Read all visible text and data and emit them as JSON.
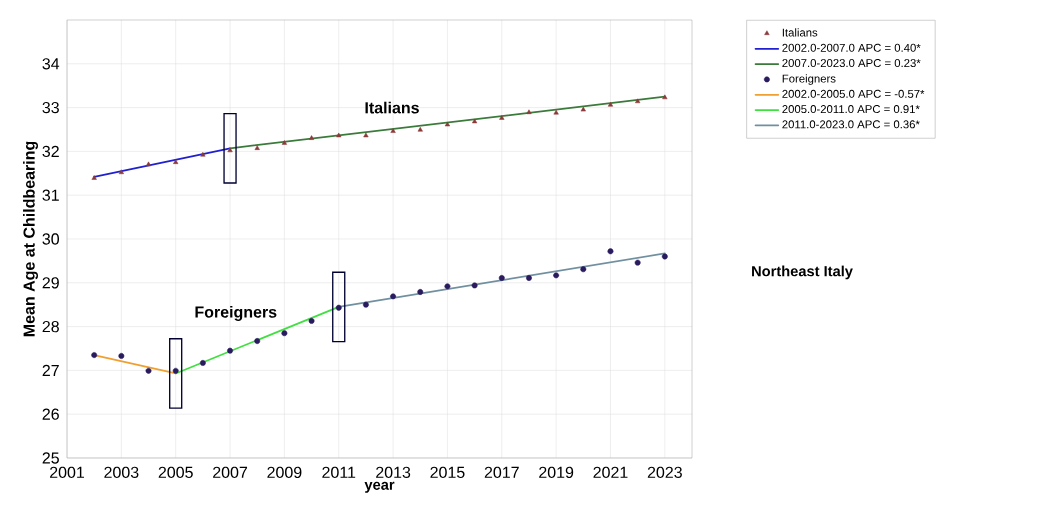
{
  "chart_data": {
    "type": "line",
    "xlabel": "year",
    "ylabel": "Mean Age at Childbearing",
    "xlim": [
      2001,
      2024
    ],
    "ylim": [
      25,
      35
    ],
    "xticks": [
      2001,
      2003,
      2005,
      2007,
      2009,
      2011,
      2013,
      2015,
      2017,
      2019,
      2021,
      2023
    ],
    "yticks": [
      25,
      26,
      27,
      28,
      29,
      30,
      31,
      32,
      33,
      34
    ],
    "grid": true,
    "legend": "top right",
    "x": [
      2002,
      2003,
      2004,
      2005,
      2006,
      2007,
      2008,
      2009,
      2010,
      2011,
      2012,
      2013,
      2014,
      2015,
      2016,
      2017,
      2018,
      2019,
      2020,
      2021,
      2022,
      2023
    ],
    "series": [
      {
        "name": "Italians",
        "type": "scatter",
        "marker": "triangle",
        "color": "#8b3a3a",
        "values": [
          31.39,
          31.52,
          31.7,
          31.75,
          31.92,
          32.02,
          32.07,
          32.19,
          32.3,
          32.36,
          32.36,
          32.46,
          32.49,
          32.61,
          32.68,
          32.76,
          32.89,
          32.88,
          32.95,
          33.06,
          33.14,
          33.23
        ]
      },
      {
        "name": "2002.0-2007.0 APC  = 0.40*",
        "marker": "none",
        "color": "#2020d0",
        "x": [
          2002,
          2007
        ],
        "values": [
          31.42,
          32.07
        ]
      },
      {
        "name": "2007.0-2023.0 APC  = 0.23*",
        "marker": "none",
        "color": "#3a7a3a",
        "x": [
          2007,
          2023
        ],
        "values": [
          32.07,
          33.25
        ]
      },
      {
        "name": "Foreigners",
        "type": "scatter",
        "marker": "circle",
        "color": "#2a1a5e",
        "values": [
          27.35,
          27.33,
          26.99,
          26.99,
          27.17,
          27.45,
          27.67,
          27.85,
          28.13,
          28.43,
          28.5,
          28.69,
          28.79,
          28.92,
          28.94,
          29.11,
          29.11,
          29.17,
          29.31,
          29.72,
          29.46,
          29.6
        ]
      },
      {
        "name": "2002.0-2005.0 APC  = -0.57*",
        "marker": "none",
        "color": "#f0a030",
        "x": [
          2002,
          2005
        ],
        "values": [
          27.35,
          26.93
        ]
      },
      {
        "name": "2005.0-2011.0 APC  =  0.91*",
        "marker": "none",
        "color": "#40e040",
        "x": [
          2005,
          2011
        ],
        "values": [
          26.93,
          28.45
        ]
      },
      {
        "name": "2011.0-2023.0 APC  =  0.36*",
        "marker": "none",
        "color": "#7090a0",
        "x": [
          2011,
          2023
        ],
        "values": [
          28.45,
          29.67
        ]
      }
    ],
    "annotations": [
      "Italians",
      "Foreigners",
      "Northeast Italy"
    ]
  }
}
